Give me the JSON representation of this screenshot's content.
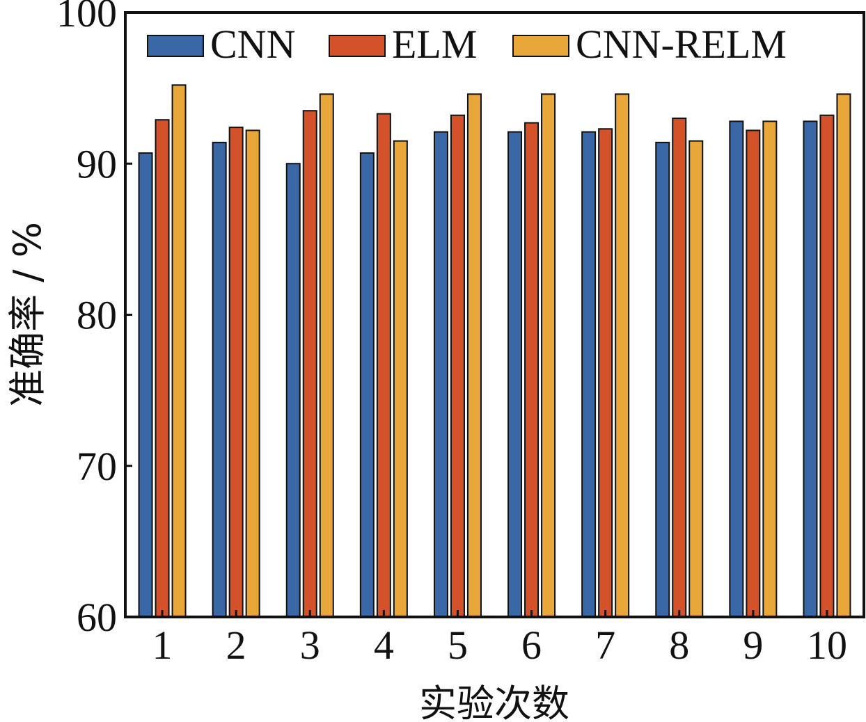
{
  "chart_data": {
    "type": "bar",
    "title": "",
    "xlabel": "实验次数",
    "ylabel": "准确率 / %",
    "ylim": [
      60,
      100
    ],
    "yticks": [
      60,
      70,
      80,
      90,
      100
    ],
    "categories": [
      "1",
      "2",
      "3",
      "4",
      "5",
      "6",
      "7",
      "8",
      "9",
      "10"
    ],
    "series": [
      {
        "name": "CNN",
        "color": "#3a67a5",
        "values": [
          90.7,
          91.4,
          90.0,
          90.7,
          92.1,
          92.1,
          92.1,
          91.4,
          92.8,
          92.8
        ]
      },
      {
        "name": "ELM",
        "color": "#d4522a",
        "values": [
          92.9,
          92.4,
          93.5,
          93.3,
          93.2,
          92.7,
          92.3,
          93.0,
          92.2,
          93.2
        ]
      },
      {
        "name": "CNN-RELM",
        "color": "#e9a73a",
        "values": [
          95.2,
          92.2,
          94.6,
          91.5,
          94.6,
          94.6,
          94.6,
          91.5,
          92.8,
          94.6
        ]
      }
    ],
    "legend_position": "top",
    "grid": false
  }
}
